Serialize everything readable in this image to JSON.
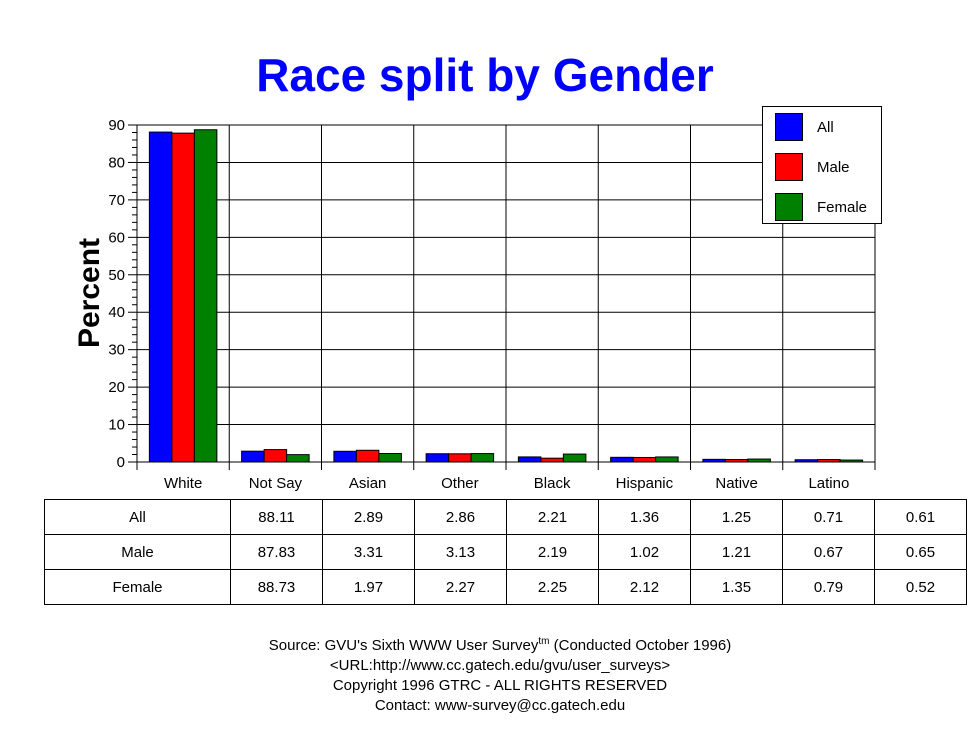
{
  "chart_data": {
    "type": "bar",
    "title": "Race split by Gender",
    "xlabel": "",
    "ylabel": "Percent",
    "ylim": [
      0,
      90
    ],
    "yticks": [
      0,
      10,
      20,
      30,
      40,
      50,
      60,
      70,
      80,
      90
    ],
    "categories": [
      "White",
      "Not Say",
      "Asian",
      "Other",
      "Black",
      "Hispanic",
      "Native",
      "Latino"
    ],
    "series": [
      {
        "name": "All",
        "color": "#0000ff",
        "values": [
          88.11,
          2.89,
          2.86,
          2.21,
          1.36,
          1.25,
          0.71,
          0.61
        ]
      },
      {
        "name": "Male",
        "color": "#ff0000",
        "values": [
          87.83,
          3.31,
          3.13,
          2.19,
          1.02,
          1.21,
          0.67,
          0.65
        ]
      },
      {
        "name": "Female",
        "color": "#008000",
        "values": [
          88.73,
          1.97,
          2.27,
          2.25,
          2.12,
          1.35,
          0.79,
          0.52
        ]
      }
    ],
    "legend_position": "top-right",
    "grid": true
  },
  "table": {
    "rows": [
      {
        "label": "All",
        "values": [
          "88.11",
          "2.89",
          "2.86",
          "2.21",
          "1.36",
          "1.25",
          "0.71",
          "0.61"
        ]
      },
      {
        "label": "Male",
        "values": [
          "87.83",
          "3.31",
          "3.13",
          "2.19",
          "1.02",
          "1.21",
          "0.67",
          "0.65"
        ]
      },
      {
        "label": "Female",
        "values": [
          "88.73",
          "1.97",
          "2.27",
          "2.25",
          "2.12",
          "1.35",
          "0.79",
          "0.52"
        ]
      }
    ]
  },
  "source": {
    "line1_prefix": "Source: GVU's Sixth WWW User Survey",
    "line1_sup": "tm",
    "line1_suffix": "  (Conducted October 1996)",
    "line2": "<URL:http://www.cc.gatech.edu/gvu/user_surveys>",
    "line3": "Copyright 1996 GTRC -  ALL RIGHTS RESERVED",
    "line4": "Contact: www-survey@cc.gatech.edu"
  }
}
